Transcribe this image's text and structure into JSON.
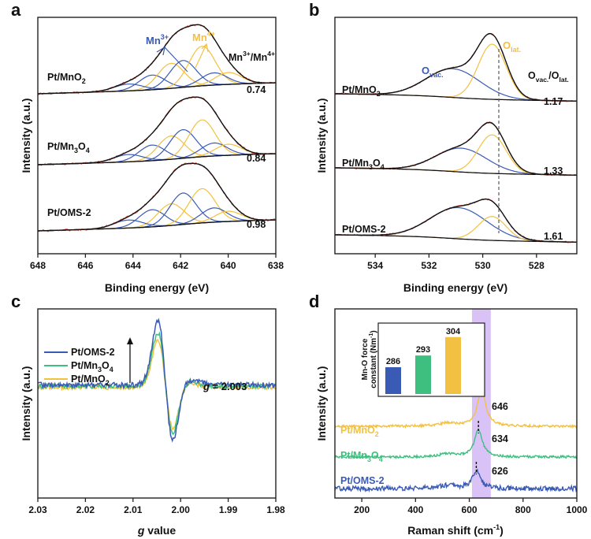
{
  "figure": {
    "panels": [
      "a",
      "b",
      "c",
      "d"
    ],
    "colors": {
      "mn3": "#3a5bb5",
      "mn4": "#f3c141",
      "green": "#3fbf7f",
      "violet": "#c9a8f2",
      "fit_black": "#111111",
      "raw_red": "#e25a4a",
      "axis": "#222222"
    }
  },
  "chart_data": [
    {
      "panel": "a",
      "type": "line",
      "title": "",
      "xlabel": "Binding energy (eV)",
      "ylabel": "Intensity (a.u.)",
      "xlim": [
        648,
        638
      ],
      "x_ticks": [
        "648",
        "646",
        "644",
        "642",
        "640",
        "638"
      ],
      "x_reversed": true,
      "component_labels": {
        "mn3": "Mn3+",
        "mn4": "Mn4+"
      },
      "ratio_header": "Mn3+/Mn4+",
      "series": [
        {
          "name": "Pt/MnO2",
          "ratio": "0.74"
        },
        {
          "name": "Pt/Mn3O4",
          "ratio": "0.84"
        },
        {
          "name": "Pt/OMS-2",
          "ratio": "0.98"
        }
      ]
    },
    {
      "panel": "b",
      "type": "line",
      "title": "",
      "xlabel": "Binding energy (eV)",
      "ylabel": "Intensity (a.u.)",
      "xlim": [
        535.5,
        526.5
      ],
      "x_ticks": [
        "534",
        "532",
        "530",
        "528"
      ],
      "x_reversed": true,
      "component_labels": {
        "ovac": "Ovac.",
        "olat": "Olat."
      },
      "ratio_header": "Ovac./Olat.",
      "reference_line_x": 529.7,
      "series": [
        {
          "name": "Pt/MnO2",
          "ratio": "1.17"
        },
        {
          "name": "Pt/Mn3O4",
          "ratio": "1.33"
        },
        {
          "name": "Pt/OMS-2",
          "ratio": "1.61"
        }
      ]
    },
    {
      "panel": "c",
      "type": "line",
      "title": "",
      "xlabel": "g value",
      "ylabel": "Intensity (a.u.)",
      "xlim": [
        2.03,
        1.98
      ],
      "x_ticks": [
        "2.03",
        "2.02",
        "2.01",
        "2.00",
        "1.99",
        "1.98"
      ],
      "x_reversed": true,
      "annotation": "g = 2.003",
      "legend": [
        "Pt/OMS-2",
        "Pt/Mn3O4",
        "Pt/MnO2"
      ],
      "series": [
        {
          "name": "Pt/OMS-2",
          "relative_amplitude": 1.0
        },
        {
          "name": "Pt/Mn3O4",
          "relative_amplitude": 0.84
        },
        {
          "name": "Pt/MnO2",
          "relative_amplitude": 0.74
        }
      ]
    },
    {
      "panel": "d",
      "type": "line",
      "title": "",
      "xlabel": "Raman shift (cm-1)",
      "ylabel": "Intensity (a.u.)",
      "xlim": [
        100,
        1000
      ],
      "x_ticks": [
        "200",
        "400",
        "600",
        "800",
        "1000"
      ],
      "highlight_band": [
        610,
        680
      ],
      "series": [
        {
          "name": "Pt/MnO2",
          "peak": 646,
          "peak_label": "646"
        },
        {
          "name": "Pt/Mn3O4",
          "peak": 634,
          "peak_label": "634"
        },
        {
          "name": "Pt/OMS-2",
          "peak": 626,
          "peak_label": "626"
        }
      ],
      "inset": {
        "type": "bar",
        "ylabel": "Mn-O force constant (Nm-1)",
        "categories": [
          "Pt/OMS-2",
          "Pt/Mn3O4",
          "Pt/MnO2"
        ],
        "values": [
          286,
          293,
          304
        ],
        "value_labels": [
          "286",
          "293",
          "304"
        ],
        "ylim": [
          270,
          310
        ]
      }
    }
  ]
}
